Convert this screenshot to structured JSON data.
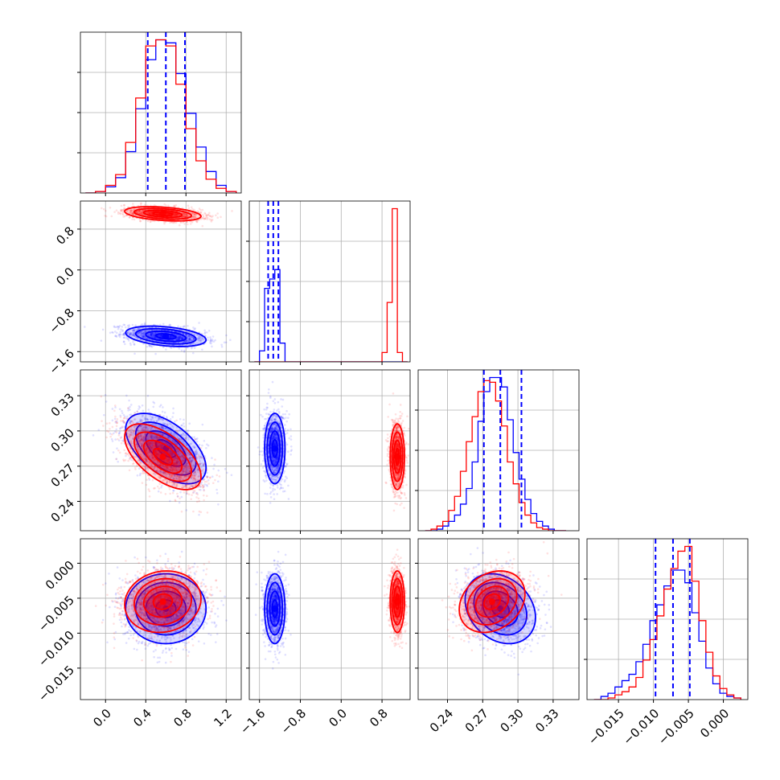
{
  "chart_data": {
    "type": "corner",
    "title": "",
    "n_params": 4,
    "params": [
      {
        "label": "",
        "range": [
          -0.25,
          1.35
        ],
        "ticks": [
          0.0,
          0.4,
          0.8,
          1.2
        ],
        "tick_labels": [
          "0.0",
          "0.4",
          "0.8",
          "1.2"
        ]
      },
      {
        "label": "",
        "range": [
          -1.8,
          1.35
        ],
        "ticks": [
          -1.6,
          -0.8,
          0.0,
          0.8
        ],
        "tick_labels": [
          "−1.6",
          "−0.8",
          "0.0",
          "0.8"
        ]
      },
      {
        "label": "",
        "range": [
          0.215,
          0.352
        ],
        "ticks": [
          0.24,
          0.27,
          0.3,
          0.33
        ],
        "tick_labels": [
          "0.24",
          "0.27",
          "0.30",
          "0.33"
        ]
      },
      {
        "label": "",
        "range": [
          -0.0195,
          0.0035
        ],
        "ticks": [
          -0.015,
          -0.01,
          -0.005,
          0.0
        ],
        "tick_labels": [
          "−0.015",
          "−0.010",
          "−0.005",
          "0.000"
        ]
      }
    ],
    "grid": true,
    "series": [
      {
        "color": "#0000ff",
        "means": [
          0.6,
          -1.3,
          0.285,
          -0.0065
        ],
        "sds": [
          0.2,
          0.1,
          0.015,
          0.0025
        ],
        "correlations": {
          "1-0": -0.35,
          "2-0": -0.55,
          "3-0": 0.0,
          "2-1": 0.0,
          "3-1": 0.0,
          "3-2": -0.25
        },
        "quantiles": [
          [
            0.42,
            0.6,
            0.79
          ],
          [
            -1.43,
            -1.33,
            -1.23
          ],
          [
            0.271,
            0.285,
            0.303
          ],
          [
            -0.0097,
            -0.0072,
            -0.0048
          ]
        ]
      },
      {
        "color": "#ff0000",
        "means": [
          0.57,
          1.1,
          0.278,
          -0.0055
        ],
        "sds": [
          0.19,
          0.07,
          0.014,
          0.0022
        ],
        "correlations": {
          "1-0": -0.35,
          "2-0": -0.6,
          "3-0": 0.1,
          "2-1": 0.0,
          "3-1": 0.0,
          "3-2": 0.25
        }
      }
    ],
    "histograms": [
      {
        "bin_edges": [
          -0.2,
          -0.1,
          0.0,
          0.1,
          0.2,
          0.3,
          0.4,
          0.5,
          0.6,
          0.7,
          0.8,
          0.9,
          1.0,
          1.1,
          1.2,
          1.3
        ],
        "counts": {
          "blue": [
            0.0,
            0.01,
            0.04,
            0.1,
            0.27,
            0.55,
            0.87,
            1.0,
            0.98,
            0.78,
            0.52,
            0.3,
            0.14,
            0.05,
            0.01
          ],
          "red": [
            0.0,
            0.01,
            0.05,
            0.12,
            0.33,
            0.62,
            0.96,
            1.0,
            0.96,
            0.71,
            0.42,
            0.21,
            0.09,
            0.03,
            0.01
          ]
        }
      },
      {
        "bin_edges": [
          -1.7,
          -1.6,
          -1.5,
          -1.4,
          -1.3,
          -1.2,
          -1.1,
          -1.0,
          0.8,
          0.9,
          1.0,
          1.1,
          1.2,
          1.3
        ],
        "counts": {
          "blue": [
            0.0,
            0.07,
            0.47,
            0.53,
            0.59,
            0.12,
            0.0,
            0.0,
            0.0,
            0.0,
            0.0,
            0.0,
            0.0
          ],
          "red": [
            0.0,
            0.0,
            0.0,
            0.0,
            0.0,
            0.0,
            0.0,
            0.0,
            0.06,
            0.38,
            0.98,
            0.06,
            0.0
          ]
        }
      },
      {
        "bin_edges": [
          0.221,
          0.226,
          0.231,
          0.236,
          0.241,
          0.246,
          0.251,
          0.256,
          0.261,
          0.266,
          0.271,
          0.276,
          0.281,
          0.286,
          0.291,
          0.296,
          0.301,
          0.306,
          0.311,
          0.316,
          0.321,
          0.326,
          0.331,
          0.336,
          0.341
        ],
        "counts": {
          "blue": [
            0.0,
            0.0,
            0.01,
            0.03,
            0.06,
            0.1,
            0.17,
            0.27,
            0.44,
            0.7,
            0.89,
            0.98,
            0.98,
            0.92,
            0.71,
            0.5,
            0.33,
            0.2,
            0.11,
            0.06,
            0.03,
            0.01,
            0.0,
            0.0
          ],
          "red": [
            0.0,
            0.01,
            0.03,
            0.06,
            0.13,
            0.22,
            0.38,
            0.57,
            0.73,
            0.89,
            0.96,
            0.95,
            0.83,
            0.67,
            0.44,
            0.3,
            0.18,
            0.1,
            0.05,
            0.02,
            0.01,
            0.0,
            0.0,
            0.0
          ]
        }
      },
      {
        "bin_edges": [
          -0.0185,
          -0.0175,
          -0.0165,
          -0.0155,
          -0.0145,
          -0.0135,
          -0.0125,
          -0.0115,
          -0.0105,
          -0.0095,
          -0.0085,
          -0.0075,
          -0.0065,
          -0.0055,
          -0.0045,
          -0.0035,
          -0.0025,
          -0.0015,
          -0.0005,
          0.0005,
          0.0015,
          0.0025
        ],
        "counts": {
          "blue": [
            0.0,
            0.02,
            0.04,
            0.08,
            0.12,
            0.16,
            0.24,
            0.35,
            0.5,
            0.6,
            0.72,
            0.82,
            0.82,
            0.74,
            0.55,
            0.37,
            0.2,
            0.1,
            0.04,
            0.02,
            0.01
          ],
          "red": [
            0.0,
            0.0,
            0.01,
            0.03,
            0.05,
            0.08,
            0.14,
            0.25,
            0.38,
            0.53,
            0.7,
            0.83,
            0.94,
            0.97,
            0.75,
            0.5,
            0.3,
            0.15,
            0.07,
            0.03,
            0.01
          ]
        }
      }
    ],
    "contour_levels_sigma": [
      0.5,
      1.0,
      1.5,
      2.0
    ]
  }
}
